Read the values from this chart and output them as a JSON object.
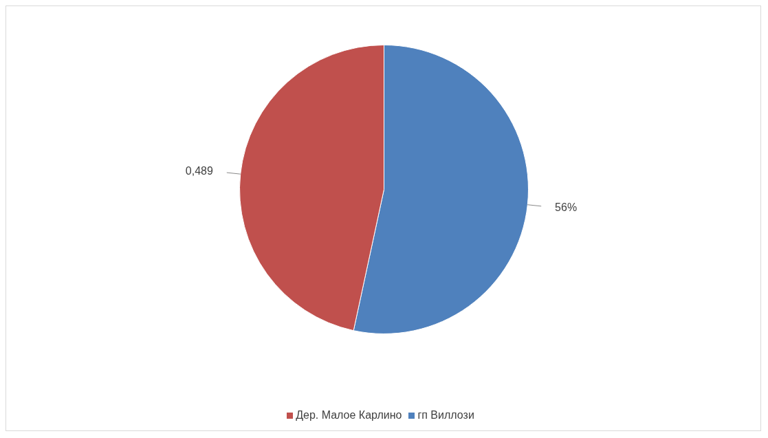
{
  "chart_data": {
    "type": "pie",
    "categories": [
      "гп Виллози",
      "Дер. Малое Карлино"
    ],
    "values": [
      0.56,
      0.489
    ],
    "value_labels": [
      "56%",
      "0,489"
    ],
    "colors": [
      "#4f81bd",
      "#c0504d"
    ],
    "legend": "bottom"
  }
}
